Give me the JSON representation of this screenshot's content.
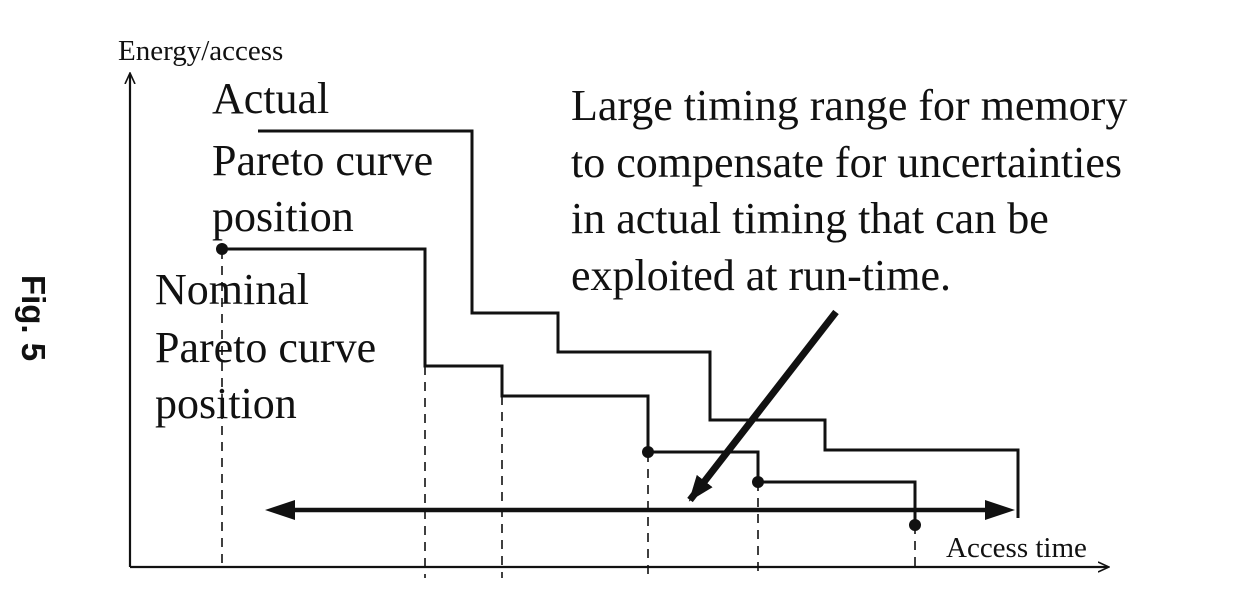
{
  "figure": {
    "fig_label": "Fig. 5",
    "y_axis_label": "Energy/access",
    "x_axis_label": "Access time",
    "actual_curve_label": [
      "Actual",
      "Pareto curve",
      "position"
    ],
    "nominal_curve_label": [
      "Nominal",
      "Pareto curve",
      "position"
    ],
    "annotation": [
      "Large timing range for memory",
      "to compensate for uncertainties",
      "in actual timing that can be",
      "exploited at run-time."
    ]
  }
}
